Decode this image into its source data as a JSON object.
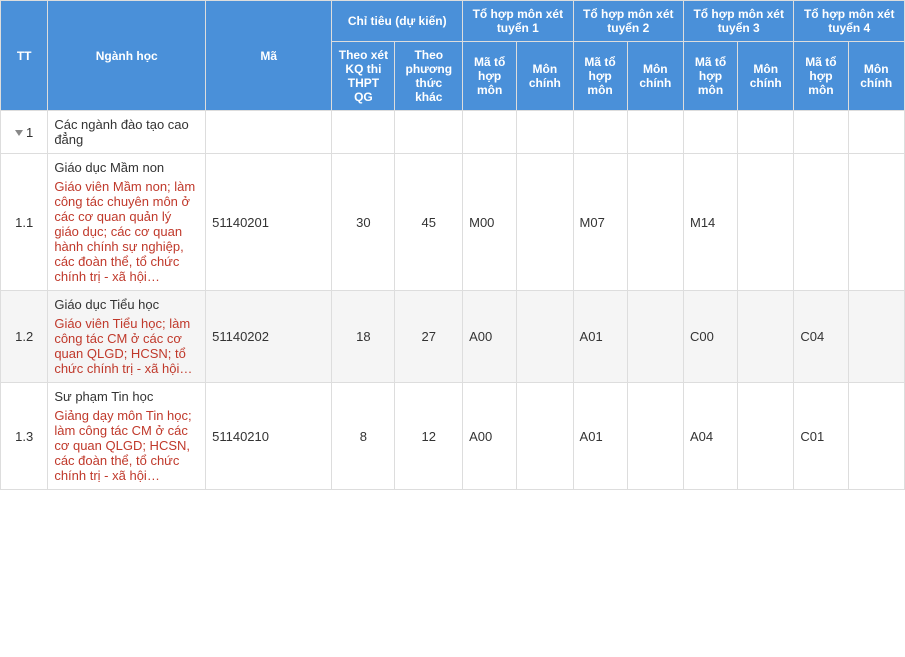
{
  "header": {
    "group_labels": {
      "chi_tieu": "Chỉ tiêu (dự kiến)",
      "tohop1": "Tổ hợp môn xét tuyển 1",
      "tohop2": "Tổ hợp môn xét tuyển 2",
      "tohop3": "Tổ hợp môn xét tuyển 3",
      "tohop4": "Tổ hợp môn xét tuyển 4"
    },
    "cols": {
      "tt": "TT",
      "nganh": "Ngành học",
      "ma": "Mã",
      "theo_kq": "Theo xét KQ thi THPT QG",
      "theo_pt": "Theo phương thức khác",
      "ma_tohop": "Mã tổ hợp môn",
      "mon_chinh": "Môn chính"
    }
  },
  "rows": [
    {
      "tt": "1",
      "expandable": true,
      "title": "Các ngành đào tạo cao đẳng",
      "desc": "",
      "ma": "",
      "kq": "",
      "pt": "",
      "th1_ma": "",
      "th1_mc": "",
      "th2_ma": "",
      "th2_mc": "",
      "th3_ma": "",
      "th3_mc": "",
      "th4_ma": "",
      "th4_mc": "",
      "alt": false
    },
    {
      "tt": "1.1",
      "expandable": false,
      "title": "Giáo dục Mầm non",
      "desc": "Giáo viên Mầm non; làm công tác chuyên môn ở các cơ quan quản lý giáo dục; các cơ quan hành chính sự nghiệp, các đoàn thể, tổ chức chính trị - xã hội…",
      "ma": "51140201",
      "kq": "30",
      "pt": "45",
      "th1_ma": "M00",
      "th1_mc": "",
      "th2_ma": "M07",
      "th2_mc": "",
      "th3_ma": "M14",
      "th3_mc": "",
      "th4_ma": "",
      "th4_mc": "",
      "alt": false
    },
    {
      "tt": "1.2",
      "expandable": false,
      "title": "Giáo dục Tiểu học",
      "desc": "Giáo viên Tiểu học; làm công tác CM ở các cơ quan QLGD; HCSN; tổ chức chính trị - xã hội…",
      "ma": "51140202",
      "kq": "18",
      "pt": "27",
      "th1_ma": "A00",
      "th1_mc": "",
      "th2_ma": "A01",
      "th2_mc": "",
      "th3_ma": "C00",
      "th3_mc": "",
      "th4_ma": "C04",
      "th4_mc": "",
      "alt": true
    },
    {
      "tt": "1.3",
      "expandable": false,
      "title": "Sư phạm Tin học",
      "desc": "Giảng dạy môn Tin học; làm công tác CM ở các cơ quan QLGD; HCSN, các đoàn thể, tổ chức chính trị - xã hội…",
      "ma": "51140210",
      "kq": "8",
      "pt": "12",
      "th1_ma": "A00",
      "th1_mc": "",
      "th2_ma": "A01",
      "th2_mc": "",
      "th3_ma": "A04",
      "th3_mc": "",
      "th4_ma": "C01",
      "th4_mc": "",
      "alt": false
    }
  ],
  "style": {
    "header_bg": "#4a90d9",
    "header_fg": "#ffffff",
    "border_color": "#dddddd",
    "desc_color": "#c0392b",
    "alt_bg": "#f5f5f5",
    "font_size": 13
  }
}
